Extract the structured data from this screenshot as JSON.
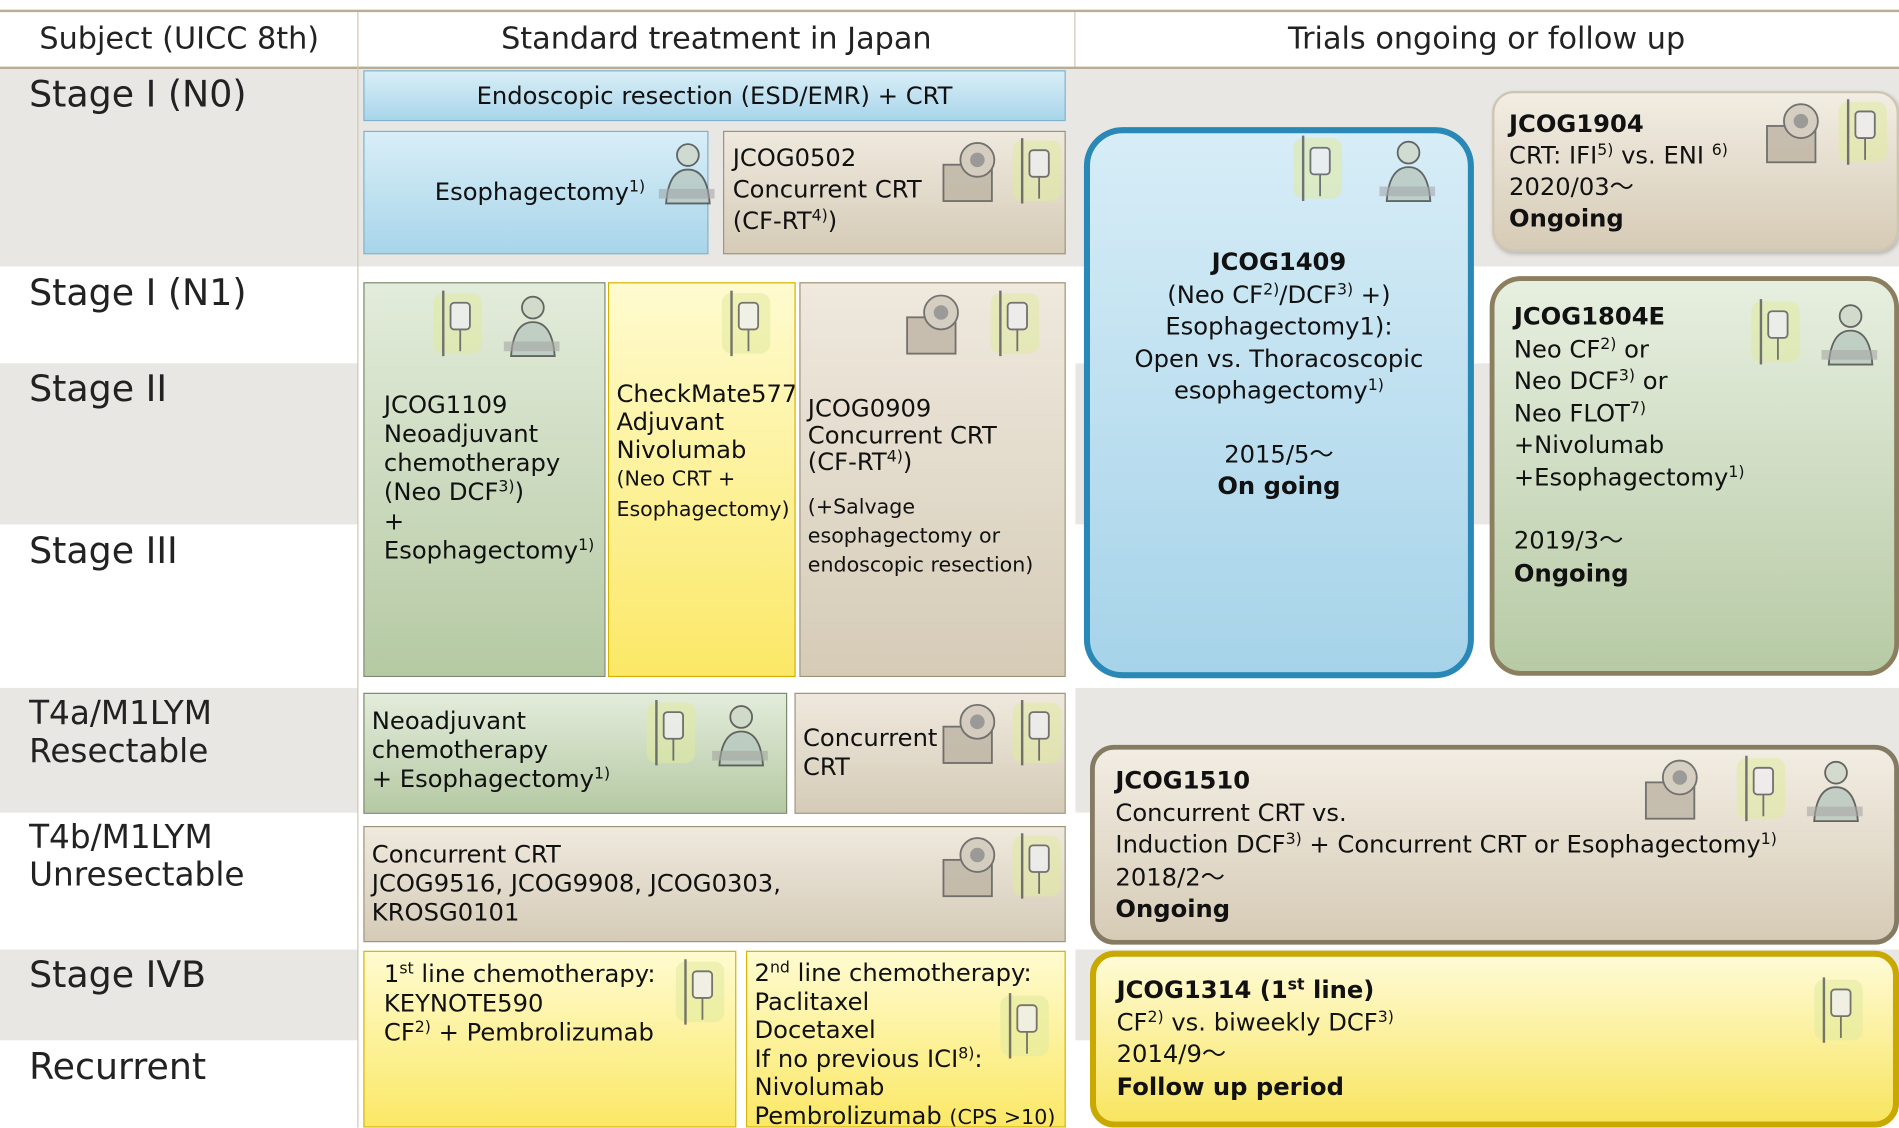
{
  "header": [
    "Subject (UICC 8th)",
    "Standard treatment in Japan",
    "Trials ongoing or follow up"
  ],
  "stages": [
    [
      "Stage I (N0)"
    ],
    [
      "Stage I (N1)"
    ],
    [
      "Stage II"
    ],
    [
      "Stage III"
    ],
    [
      "T4a/M1LYM",
      "Resectable"
    ],
    [
      "T4b/M1LYM",
      "Unresectable"
    ],
    [
      "Stage IVB"
    ],
    [
      "Recurrent"
    ]
  ],
  "boxes": [
    {
      "paras": [
        [
          [
            "Endoscopic resection (ESD/EMR) + CRT"
          ]
        ]
      ]
    },
    {
      "paras": [
        [
          [
            "Esophagectomy",
            {
              "sup": "1)"
            }
          ]
        ]
      ]
    },
    {
      "paras": [
        [
          [
            "JCOG0502"
          ],
          [
            "Concurrent CRT"
          ],
          [
            "(CF-RT",
            {
              "sup": "4)"
            },
            ")"
          ]
        ]
      ]
    },
    {
      "paras": [
        [
          [
            "JCOG1109"
          ],
          [
            "Neoadjuvant"
          ],
          [
            "chemotherapy"
          ],
          [
            "(Neo DCF",
            {
              "sup": "3)"
            },
            ")"
          ],
          [
            "+"
          ],
          [
            "Esophagectomy",
            {
              "sup": "1)"
            }
          ]
        ]
      ]
    },
    {
      "paras": [
        [
          [
            "CheckMate577"
          ],
          [
            "Adjuvant"
          ],
          [
            "Nivolumab"
          ],
          [
            {
              "small": "(Neo CRT +"
            }
          ],
          [
            {
              "small": "Esophagectomy)"
            }
          ]
        ]
      ]
    },
    {
      "paras": [
        [
          [
            "JCOG0909"
          ],
          [
            "Concurrent CRT"
          ],
          [
            "(CF-RT",
            {
              "sup": "4)"
            },
            ")"
          ]
        ],
        [
          [
            {
              "small": "(+Salvage"
            }
          ],
          [
            {
              "small": "esophagectomy or"
            }
          ],
          [
            {
              "small": "endoscopic resection)"
            }
          ]
        ]
      ]
    },
    {
      "paras": [
        [
          [
            "Neoadjuvant"
          ],
          [
            "chemotherapy"
          ],
          [
            "+ Esophagectomy",
            {
              "sup": "1)"
            }
          ]
        ]
      ]
    },
    {
      "paras": [
        [
          [
            "Concurrent"
          ],
          [
            "CRT"
          ]
        ]
      ]
    },
    {
      "paras": [
        [
          [
            "Concurrent CRT"
          ],
          [
            "JCOG9516, JCOG9908, JCOG0303,"
          ],
          [
            "KROSG0101"
          ]
        ]
      ]
    },
    {
      "paras": [
        [
          [
            "1",
            {
              "sup": "st"
            },
            " line chemotherapy:"
          ],
          [
            "KEYNOTE590"
          ],
          [
            "CF",
            {
              "sup": "2)"
            },
            " + Pembrolizumab"
          ]
        ]
      ]
    },
    {
      "paras": [
        [
          [
            "2",
            {
              "sup": "nd"
            },
            " line chemotherapy:"
          ],
          [
            "Paclitaxel"
          ],
          [
            "Docetaxel"
          ],
          [
            "If no previous ICI",
            {
              "sup": "8)"
            },
            ":"
          ],
          [
            "Nivolumab"
          ],
          [
            "Pembrolizumab ",
            {
              "small": "(CPS >10)"
            }
          ]
        ]
      ]
    },
    {
      "paras": [
        [
          [
            {
              "b": "JCOG1409"
            }
          ],
          [
            "(Neo CF",
            {
              "sup": "2)"
            },
            "/DCF",
            {
              "sup": "3)"
            },
            " +)"
          ],
          [
            "Esophagectomy1):"
          ],
          [
            "Open vs. Thoracoscopic"
          ],
          [
            "esophagectomy",
            {
              "sup": "1)"
            }
          ]
        ],
        [
          [
            "2015/5～"
          ],
          [
            {
              "b": "On going"
            }
          ]
        ]
      ]
    },
    {
      "paras": [
        [
          [
            {
              "b": "JCOG1904"
            }
          ],
          [
            "CRT: IFI",
            {
              "sup": "5)"
            },
            " vs. ENI ",
            {
              "sup": "6)"
            }
          ],
          [
            "2020/03～"
          ],
          [
            {
              "b": "Ongoing"
            }
          ]
        ]
      ]
    },
    {
      "paras": [
        [
          [
            {
              "b": "JCOG1804E"
            }
          ],
          [
            "Neo CF",
            {
              "sup": "2)"
            },
            " or"
          ],
          [
            "Neo DCF",
            {
              "sup": "3)"
            },
            " or"
          ],
          [
            "Neo FLOT",
            {
              "sup": "7)"
            }
          ],
          [
            "+Nivolumab"
          ],
          [
            "+Esophagectomy",
            {
              "sup": "1)"
            }
          ]
        ],
        [
          [
            "2019/3～"
          ],
          [
            {
              "b": "Ongoing"
            }
          ]
        ]
      ]
    },
    {
      "paras": [
        [
          [
            {
              "b": "JCOG1510"
            }
          ],
          [
            "Concurrent CRT vs."
          ],
          [
            "Induction DCF",
            {
              "sup": "3)"
            },
            " + Concurrent CRT or Esophagectomy",
            {
              "sup": "1)"
            }
          ],
          [
            "2018/2～"
          ],
          [
            {
              "b": "Ongoing"
            }
          ]
        ]
      ]
    },
    {
      "paras": [
        [
          [
            {
              "b": "JCOG1314 (1"
            },
            {
              "bsup": "st"
            },
            {
              "b": " line)"
            }
          ],
          [
            "CF",
            {
              "sup": "2)"
            },
            " vs. biweekly DCF",
            {
              "sup": "3)"
            }
          ],
          [
            "2014/9～"
          ],
          [
            {
              "b": "Follow up period"
            }
          ]
        ]
      ]
    }
  ]
}
